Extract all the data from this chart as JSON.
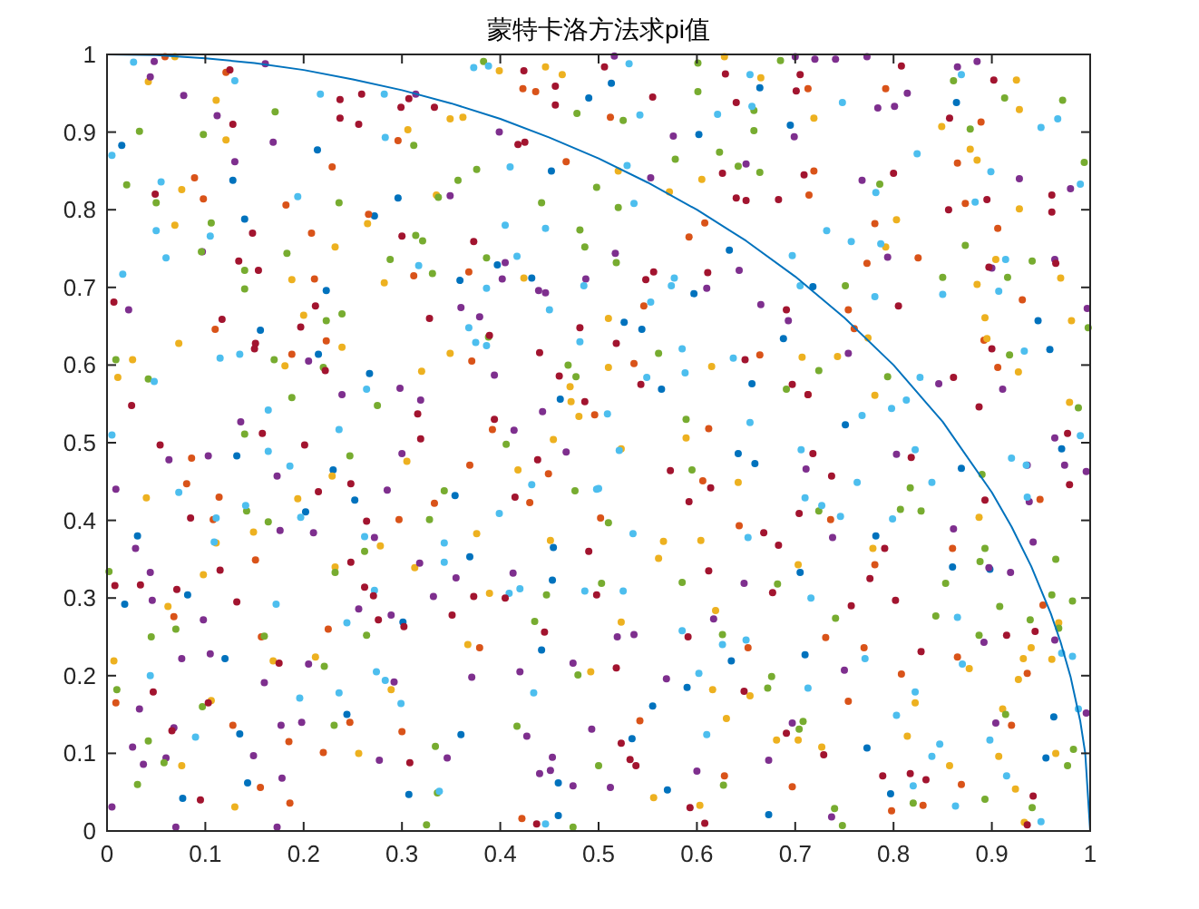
{
  "chart_data": {
    "type": "scatter",
    "title": "蒙特卡洛方法求pi值",
    "xlim": [
      0,
      1
    ],
    "ylim": [
      0,
      1
    ],
    "xticks": [
      0,
      0.1,
      0.2,
      0.3,
      0.4,
      0.5,
      0.6,
      0.7,
      0.8,
      0.9,
      1
    ],
    "yticks": [
      0,
      0.1,
      0.2,
      0.3,
      0.4,
      0.5,
      0.6,
      0.7,
      0.8,
      0.9,
      1
    ],
    "grid": false,
    "marker": "circle",
    "series": [
      {
        "color": "#0072bd",
        "x": [
          0.015,
          0.128,
          0.214,
          0.14,
          0.272,
          0.296,
          0.359,
          0.397,
          0.432,
          0.452,
          0.49,
          0.223,
          0.156,
          0.215,
          0.267,
          0.461,
          0.513,
          0.664,
          0.602,
          0.695,
          0.864,
          0.633,
          0.597,
          0.718,
          0.526,
          0.544,
          0.688,
          0.947,
          0.959,
          0.656,
          0.564,
          0.751,
          0.132,
          0.23,
          0.252,
          0.031,
          0.202,
          0.018,
          0.082,
          0.12,
          0.354,
          0.369,
          0.454,
          0.453,
          0.442,
          0.301,
          0.244,
          0.135,
          0.077,
          0.143,
          0.307,
          0.36,
          0.459,
          0.459,
          0.642,
          0.659,
          0.869,
          0.971,
          0.782,
          0.705,
          0.71,
          0.635,
          0.59,
          0.555,
          0.534,
          0.773,
          0.797,
          0.57,
          0.673,
          0.955,
          0.963,
          0.898,
          0.86
        ],
        "values": [
          0.883,
          0.838,
          0.877,
          0.788,
          0.792,
          0.815,
          0.709,
          0.729,
          0.712,
          0.85,
          0.944,
          0.696,
          0.645,
          0.614,
          0.589,
          0.556,
          0.963,
          0.957,
          0.897,
          0.909,
          0.938,
          0.748,
          0.692,
          0.701,
          0.655,
          0.646,
          0.634,
          0.657,
          0.62,
          0.576,
          0.569,
          0.523,
          0.483,
          0.465,
          0.426,
          0.38,
          0.411,
          0.292,
          0.304,
          0.222,
          0.432,
          0.353,
          0.365,
          0.323,
          0.233,
          0.269,
          0.15,
          0.125,
          0.042,
          0.062,
          0.047,
          0.124,
          0.062,
          0.02,
          0.486,
          0.473,
          0.467,
          0.492,
          0.38,
          0.333,
          0.227,
          0.219,
          0.185,
          0.161,
          0.119,
          0.107,
          0.048,
          0.053,
          0.021,
          0.094,
          0.147,
          0.337,
          0.34
        ]
      },
      {
        "color": "#d95319",
        "x": [
          0.059,
          0.121,
          0.229,
          0.089,
          0.098,
          0.182,
          0.208,
          0.266,
          0.211,
          0.296,
          0.368,
          0.312,
          0.423,
          0.436,
          0.467,
          0.11,
          0.223,
          0.188,
          0.371,
          0.392,
          0.496,
          0.512,
          0.713,
          0.792,
          0.865,
          0.889,
          0.873,
          0.719,
          0.714,
          0.592,
          0.608,
          0.781,
          0.773,
          0.825,
          0.931,
          0.906,
          0.546,
          0.664,
          0.754,
          0.76,
          0.892,
          0.906,
          0.713,
          0.536,
          0.612,
          0.086,
          0.081,
          0.114,
          0.108,
          0.151,
          0.068,
          0.157,
          0.225,
          0.009,
          0.128,
          0.185,
          0.22,
          0.247,
          0.156,
          0.186,
          0.297,
          0.3,
          0.333,
          0.369,
          0.379,
          0.43,
          0.449,
          0.422,
          0.502,
          0.542,
          0.606,
          0.643,
          0.652,
          0.731,
          0.736,
          0.754,
          0.781,
          0.77,
          0.808,
          0.86,
          0.865,
          0.949,
          0.952,
          0.936,
          0.92,
          0.869,
          0.83,
          0.798,
          0.697,
          0.628
        ],
        "values": [
          0.997,
          0.977,
          0.855,
          0.841,
          0.814,
          0.806,
          0.77,
          0.794,
          0.711,
          0.889,
          0.72,
          0.715,
          0.956,
          0.952,
          0.862,
          0.646,
          0.631,
          0.614,
          0.605,
          0.517,
          0.536,
          0.919,
          0.956,
          0.956,
          0.86,
          0.913,
          0.808,
          0.85,
          0.819,
          0.765,
          0.783,
          0.782,
          0.731,
          0.738,
          0.684,
          0.776,
          0.676,
          0.613,
          0.671,
          0.647,
          0.632,
          0.597,
          0.562,
          0.602,
          0.518,
          0.48,
          0.447,
          0.43,
          0.401,
          0.349,
          0.276,
          0.25,
          0.26,
          0.165,
          0.136,
          0.115,
          0.101,
          0.14,
          0.056,
          0.036,
          0.401,
          0.128,
          0.422,
          0.471,
          0.236,
          0.423,
          0.46,
          0.016,
          0.403,
          0.142,
          0.451,
          0.393,
          0.236,
          0.249,
          0.401,
          0.167,
          0.343,
          0.236,
          0.202,
          0.364,
          0.224,
          0.427,
          0.291,
          0.203,
          0.136,
          0.06,
          0.033,
          0.026,
          0.057,
          0.071
        ]
      },
      {
        "color": "#edb120",
        "x": [
          0.069,
          0.042,
          0.111,
          0.121,
          0.076,
          0.069,
          0.232,
          0.265,
          0.306,
          0.349,
          0.362,
          0.335,
          0.399,
          0.446,
          0.463,
          0.282,
          0.424,
          0.188,
          0.073,
          0.026,
          0.011,
          0.2,
          0.239,
          0.181,
          0.32,
          0.349,
          0.471,
          0.472,
          0.48,
          0.454,
          0.628,
          0.665,
          0.719,
          0.605,
          0.572,
          0.52,
          0.51,
          0.51,
          0.615,
          0.707,
          0.743,
          0.774,
          0.781,
          0.803,
          0.792,
          0.849,
          0.878,
          0.885,
          0.928,
          0.925,
          0.928,
          0.904,
          0.885,
          0.893,
          0.895,
          0.927,
          0.981,
          0.97,
          0.979,
          0.589,
          0.04,
          0.098,
          0.062,
          0.111,
          0.149,
          0.194,
          0.229,
          0.232,
          0.169,
          0.212,
          0.106,
          0.076,
          0.13,
          0.256,
          0.278,
          0.289,
          0.305,
          0.313,
          0.367,
          0.389,
          0.376,
          0.418,
          0.451,
          0.492,
          0.007,
          0.523,
          0.523,
          0.642,
          0.604,
          0.566,
          0.561,
          0.619,
          0.616,
          0.63,
          0.654,
          0.681,
          0.703,
          0.703,
          0.779,
          0.822,
          0.814,
          0.857,
          0.877,
          0.887,
          0.94,
          0.932,
          0.927,
          0.911,
          0.907,
          0.924,
          0.933,
          0.965,
          0.968,
          0.961,
          0.556,
          0.603,
          0.727
        ],
        "values": [
          0.997,
          0.965,
          0.941,
          0.89,
          0.826,
          0.78,
          0.752,
          0.782,
          0.903,
          0.917,
          0.919,
          0.819,
          0.979,
          0.984,
          0.974,
          0.706,
          0.712,
          0.71,
          0.628,
          0.607,
          0.584,
          0.664,
          0.623,
          0.599,
          0.592,
          0.615,
          0.572,
          0.553,
          0.534,
          0.504,
          0.997,
          0.97,
          0.918,
          0.839,
          0.823,
          0.85,
          0.66,
          0.597,
          0.598,
          0.61,
          0.611,
          0.635,
          0.561,
          0.787,
          0.752,
          0.907,
          0.878,
          0.864,
          0.929,
          0.967,
          0.801,
          0.736,
          0.704,
          0.661,
          0.634,
          0.591,
          0.657,
          0.712,
          0.552,
          0.506,
          0.429,
          0.33,
          0.289,
          0.371,
          0.385,
          0.428,
          0.457,
          0.34,
          0.219,
          0.224,
          0.168,
          0.084,
          0.031,
          0.1,
          0.367,
          0.182,
          0.476,
          0.339,
          0.24,
          0.306,
          0.383,
          0.465,
          0.374,
          0.205,
          0.219,
          0.492,
          0.269,
          0.449,
          0.374,
          0.373,
          0.351,
          0.284,
          0.182,
          0.145,
          0.174,
          0.117,
          0.117,
          0.343,
          0.364,
          0.165,
          0.122,
          0.084,
          0.209,
          0.404,
          0.236,
          0.222,
          0.195,
          0.157,
          0.096,
          0.054,
          0.011,
          0.1,
          0.268,
          0.221,
          0.043,
          0.033,
          0.108
        ]
      },
      {
        "color": "#7e2f8e",
        "x": [
          0.048,
          0.044,
          0.078,
          0.112,
          0.13,
          0.169,
          0.161,
          0.097,
          0.349,
          0.399,
          0.314,
          0.405,
          0.402,
          0.439,
          0.446,
          0.487,
          0.022,
          0.205,
          0.239,
          0.298,
          0.319,
          0.36,
          0.379,
          0.394,
          0.443,
          0.414,
          0.136,
          0.516,
          0.7,
          0.72,
          0.741,
          0.773,
          0.865,
          0.885,
          0.814,
          0.801,
          0.784,
          0.576,
          0.553,
          0.65,
          0.699,
          0.768,
          0.794,
          0.517,
          0.61,
          0.643,
          0.665,
          0.693,
          0.754,
          0.846,
          0.911,
          0.928,
          0.98,
          0.964,
          0.9,
          0.964,
          0.997,
          0.009,
          0.063,
          0.103,
          0.029,
          0.044,
          0.046,
          0.098,
          0.076,
          0.105,
          0.176,
          0.21,
          0.173,
          0.256,
          0.272,
          0.285,
          0.3,
          0.289,
          0.318,
          0.205,
          0.16,
          0.177,
          0.198,
          0.149,
          0.033,
          0.026,
          0.037,
          0.06,
          0.068,
          0.178,
          0.277,
          0.292,
          0.346,
          0.355,
          0.332,
          0.371,
          0.413,
          0.42,
          0.427,
          0.44,
          0.451,
          0.453,
          0.474,
          0.474,
          0.467,
          0.493,
          0.005,
          0.07,
          0.173,
          0.803,
          0.936,
          0.938,
          0.974,
          0.996,
          0.861,
          0.942,
          0.919,
          0.897,
          0.892,
          0.711,
          0.738,
          0.648,
          0.617,
          0.536,
          0.519,
          0.569,
          0.75,
          0.697,
          0.904,
          0.673,
          0.6,
          0.512,
          0.737,
          0.964,
          0.996
        ],
        "values": [
          0.991,
          0.971,
          0.947,
          0.921,
          0.862,
          0.887,
          0.988,
          0.746,
          0.818,
          0.9,
          0.949,
          0.732,
          0.711,
          0.696,
          0.693,
          0.711,
          0.671,
          0.605,
          0.562,
          0.57,
          0.555,
          0.674,
          0.662,
          0.587,
          0.54,
          0.516,
          0.527,
          0.998,
          0.997,
          0.994,
          0.994,
          0.997,
          0.984,
          0.991,
          0.95,
          0.933,
          0.931,
          0.895,
          0.841,
          0.859,
          0.894,
          0.838,
          0.739,
          0.744,
          0.699,
          0.722,
          0.678,
          0.657,
          0.615,
          0.576,
          0.569,
          0.84,
          0.827,
          0.736,
          0.725,
          0.506,
          0.673,
          0.44,
          0.478,
          0.483,
          0.364,
          0.333,
          0.297,
          0.272,
          0.222,
          0.228,
          0.387,
          0.384,
          0.457,
          0.286,
          0.378,
          0.439,
          0.486,
          0.278,
          0.345,
          0.215,
          0.191,
          0.136,
          0.14,
          0.097,
          0.157,
          0.108,
          0.086,
          0.094,
          0.133,
          0.068,
          0.091,
          0.192,
          0.094,
          0.326,
          0.302,
          0.198,
          0.332,
          0.205,
          0.122,
          0.074,
          0.078,
          0.095,
          0.058,
          0.216,
          0.488,
          0.131,
          0.031,
          0.005,
          0.005,
          0.485,
          0.471,
          0.424,
          0.471,
          0.463,
          0.389,
          0.372,
          0.333,
          0.339,
          0.243,
          0.466,
          0.378,
          0.319,
          0.273,
          0.253,
          0.25,
          0.196,
          0.207,
          0.139,
          0.139,
          0.091,
          0.077,
          0.056,
          0.018,
          0.246,
          0.152
        ]
      },
      {
        "color": "#77ac30",
        "x": [
          0.033,
          0.098,
          0.171,
          0.02,
          0.05,
          0.106,
          0.096,
          0.183,
          0.14,
          0.14,
          0.236,
          0.312,
          0.314,
          0.321,
          0.288,
          0.331,
          0.337,
          0.357,
          0.376,
          0.386,
          0.383,
          0.442,
          0.478,
          0.481,
          0.486,
          0.498,
          0.009,
          0.042,
          0.223,
          0.239,
          0.17,
          0.22,
          0.188,
          0.275,
          0.388,
          0.469,
          0.477,
          0.14,
          0.601,
          0.685,
          0.601,
          0.658,
          0.658,
          0.525,
          0.623,
          0.578,
          0.642,
          0.664,
          0.786,
          0.861,
          0.878,
          0.913,
          0.972,
          0.994,
          0.52,
          0.518,
          0.561,
          0.751,
          0.724,
          0.794,
          0.85,
          0.873,
          0.941,
          0.916,
          0.918,
          0.998,
          0.589,
          0.691,
          0.988,
          0.142,
          0.164,
          0.247,
          0.232,
          0.262,
          0.264,
          0.221,
          0.231,
          0.16,
          0.07,
          0.045,
          0.01,
          0.002,
          0.097,
          0.042,
          0.058,
          0.031,
          0.328,
          0.343,
          0.334,
          0.336,
          0.325,
          0.406,
          0.417,
          0.435,
          0.447,
          0.476,
          0.479,
          0.474,
          0.51,
          0.503,
          0.595,
          0.585,
          0.682,
          0.724,
          0.741,
          0.676,
          0.672,
          0.627,
          0.708,
          0.704,
          0.807,
          0.828,
          0.817,
          0.853,
          0.843,
          0.887,
          0.89,
          0.888,
          0.893,
          0.908,
          0.939,
          0.961,
          0.965,
          0.982,
          0.968,
          0.914,
          0.983,
          0.977,
          0.941,
          0.893,
          0.82,
          0.74,
          0.748,
          0.626,
          0.5
        ],
        "values": [
          0.901,
          0.897,
          0.926,
          0.832,
          0.809,
          0.783,
          0.746,
          0.744,
          0.722,
          0.698,
          0.809,
          0.883,
          0.767,
          0.76,
          0.736,
          0.718,
          0.816,
          0.838,
          0.852,
          0.738,
          0.991,
          0.809,
          0.924,
          0.774,
          0.752,
          0.829,
          0.607,
          0.582,
          0.657,
          0.666,
          0.607,
          0.597,
          0.558,
          0.548,
          0.636,
          0.6,
          0.585,
          0.511,
          0.989,
          0.992,
          0.952,
          0.928,
          0.902,
          0.915,
          0.874,
          0.865,
          0.856,
          0.848,
          0.833,
          0.966,
          0.904,
          0.944,
          0.941,
          0.861,
          0.803,
          0.732,
          0.615,
          0.702,
          0.593,
          0.585,
          0.713,
          0.754,
          0.734,
          0.713,
          0.613,
          0.648,
          0.53,
          0.569,
          0.545,
          0.412,
          0.398,
          0.483,
          0.333,
          0.36,
          0.252,
          0.212,
          0.136,
          0.251,
          0.26,
          0.25,
          0.182,
          0.334,
          0.16,
          0.116,
          0.088,
          0.06,
          0.401,
          0.438,
          0.109,
          0.049,
          0.008,
          0.498,
          0.135,
          0.27,
          0.304,
          0.438,
          0.201,
          0.005,
          0.397,
          0.319,
          0.465,
          0.32,
          0.318,
          0.412,
          0.274,
          0.199,
          0.184,
          0.059,
          0.141,
          0.131,
          0.414,
          0.412,
          0.442,
          0.319,
          0.277,
          0.252,
          0.459,
          0.347,
          0.364,
          0.289,
          0.272,
          0.304,
          0.35,
          0.296,
          0.261,
          0.15,
          0.105,
          0.084,
          0.03,
          0.041,
          0.036,
          0.029,
          0.007,
          0.253,
          0.084
        ]
      },
      {
        "color": "#4dbeee",
        "x": [
          0.027,
          0.13,
          0.005,
          0.055,
          0.05,
          0.06,
          0.016,
          0.105,
          0.194,
          0.217,
          0.282,
          0.283,
          0.373,
          0.388,
          0.405,
          0.41,
          0.417,
          0.317,
          0.386,
          0.446,
          0.45,
          0.485,
          0.481,
          0.115,
          0.135,
          0.264,
          0.164,
          0.236,
          0.368,
          0.375,
          0.386,
          0.048,
          0.005,
          0.531,
          0.654,
          0.656,
          0.621,
          0.542,
          0.529,
          0.536,
          0.748,
          0.824,
          0.869,
          0.899,
          0.883,
          0.95,
          0.967,
          0.99,
          0.782,
          0.732,
          0.787,
          0.757,
          0.697,
          0.705,
          0.781,
          0.85,
          0.914,
          0.907,
          0.933,
          0.574,
          0.577,
          0.553,
          0.585,
          0.588,
          0.637,
          0.549,
          0.509,
          0.654,
          0.768,
          0.798,
          0.813,
          0.827,
          0.99,
          0.164,
          0.186,
          0.073,
          0.141,
          0.111,
          0.197,
          0.109,
          0.262,
          0.272,
          0.343,
          0.343,
          0.172,
          0.244,
          0.274,
          0.283,
          0.299,
          0.236,
          0.196,
          0.044,
          0.09,
          0.399,
          0.432,
          0.42,
          0.409,
          0.486,
          0.498,
          0.434,
          0.338,
          0.446,
          0.521,
          0.706,
          0.822,
          0.92,
          0.935,
          0.763,
          0.839,
          0.71,
          0.727,
          0.746,
          0.799,
          0.535,
          0.652,
          0.525,
          0.716,
          0.585,
          0.626,
          0.65,
          0.771,
          0.822,
          0.713,
          0.602,
          0.61,
          0.803,
          0.847,
          0.839,
          0.865,
          0.87,
          0.936,
          0.971,
          0.982,
          0.988,
          0.898,
          0.915,
          0.863,
          0.95,
          0.82,
          0.5
        ],
        "values": [
          0.99,
          0.966,
          0.87,
          0.836,
          0.773,
          0.738,
          0.717,
          0.766,
          0.817,
          0.949,
          0.949,
          0.893,
          0.983,
          0.985,
          0.78,
          0.855,
          0.74,
          0.728,
          0.699,
          0.776,
          0.671,
          0.702,
          0.63,
          0.609,
          0.614,
          0.569,
          0.542,
          0.517,
          0.648,
          0.629,
          0.625,
          0.579,
          0.51,
          0.988,
          0.974,
          0.933,
          0.923,
          0.922,
          0.857,
          0.808,
          0.938,
          0.872,
          0.974,
          0.849,
          0.81,
          0.906,
          0.917,
          0.833,
          0.822,
          0.773,
          0.756,
          0.759,
          0.741,
          0.702,
          0.688,
          0.691,
          0.736,
          0.695,
          0.618,
          0.702,
          0.712,
          0.681,
          0.621,
          0.59,
          0.609,
          0.584,
          0.537,
          0.526,
          0.535,
          0.544,
          0.555,
          0.584,
          0.509,
          0.489,
          0.47,
          0.436,
          0.419,
          0.403,
          0.404,
          0.372,
          0.379,
          0.31,
          0.371,
          0.346,
          0.292,
          0.268,
          0.205,
          0.194,
          0.164,
          0.178,
          0.171,
          0.2,
          0.121,
          0.409,
          0.446,
          0.312,
          0.306,
          0.309,
          0.44,
          0.178,
          0.051,
          0.009,
          0.49,
          0.491,
          0.491,
          0.48,
          0.471,
          0.449,
          0.449,
          0.429,
          0.419,
          0.405,
          0.402,
          0.383,
          0.378,
          0.309,
          0.3,
          0.258,
          0.24,
          0.246,
          0.222,
          0.179,
          0.184,
          0.203,
          0.124,
          0.149,
          0.112,
          0.096,
          0.275,
          0.215,
          0.43,
          0.229,
          0.225,
          0.157,
          0.117,
          0.071,
          0.032,
          0.012,
          0.058,
          0.441
        ]
      },
      {
        "color": "#a2142f",
        "x": [
          0.125,
          0.424,
          0.456,
          0.456,
          0.237,
          0.237,
          0.259,
          0.256,
          0.299,
          0.307,
          0.333,
          0.418,
          0.425,
          0.128,
          0.049,
          0.148,
          0.134,
          0.154,
          0.3,
          0.373,
          0.007,
          0.117,
          0.151,
          0.15,
          0.197,
          0.212,
          0.328,
          0.389,
          0.44,
          0.46,
          0.481,
          0.486,
          0.025,
          0.158,
          0.222,
          0.316,
          0.394,
          0.319,
          0.506,
          0.629,
          0.705,
          0.808,
          0.555,
          0.64,
          0.701,
          0.857,
          0.902,
          0.626,
          0.709,
          0.8,
          0.64,
          0.65,
          0.683,
          0.895,
          0.856,
          0.961,
          0.961,
          0.965,
          0.556,
          0.548,
          0.611,
          0.691,
          0.805,
          0.518,
          0.649,
          0.543,
          0.697,
          0.713,
          0.861,
          0.897,
          0.9,
          0.887,
          0.977,
          0.054,
          0.201,
          0.215,
          0.248,
          0.085,
          0.264,
          0.248,
          0.115,
          0.034,
          0.008,
          0.071,
          0.132,
          0.262,
          0.271,
          0.276,
          0.302,
          0.351,
          0.373,
          0.405,
          0.438,
          0.415,
          0.445,
          0.49,
          0.498,
          0.175,
          0.103,
          0.047,
          0.066,
          0.095,
          0.308,
          0.437,
          0.573,
          0.614,
          0.592,
          0.612,
          0.677,
          0.683,
          0.668,
          0.718,
          0.737,
          0.704,
          0.818,
          0.791,
          0.802,
          0.757,
          0.776,
          0.828,
          0.893,
          0.915,
          0.944,
          0.979,
          0.518,
          0.523,
          0.532,
          0.538,
          0.591,
          0.648,
          0.729,
          0.691,
          0.789,
          0.817,
          0.833,
          0.593,
          0.608,
          0.942,
          0.936
        ],
        "values": [
          0.98,
          0.979,
          0.959,
          0.935,
          0.942,
          0.918,
          0.949,
          0.91,
          0.932,
          0.943,
          0.932,
          0.884,
          0.887,
          0.91,
          0.82,
          0.77,
          0.734,
          0.722,
          0.766,
          0.759,
          0.681,
          0.659,
          0.628,
          0.621,
          0.649,
          0.676,
          0.66,
          0.638,
          0.616,
          0.586,
          0.648,
          0.553,
          0.548,
          0.512,
          0.593,
          0.537,
          0.53,
          0.505,
          0.984,
          0.975,
          0.974,
          0.985,
          0.945,
          0.938,
          0.953,
          0.918,
          0.967,
          0.847,
          0.845,
          0.847,
          0.815,
          0.812,
          0.813,
          0.813,
          0.8,
          0.819,
          0.797,
          0.731,
          0.72,
          0.71,
          0.719,
          0.671,
          0.676,
          0.628,
          0.607,
          0.575,
          0.575,
          0.562,
          0.584,
          0.726,
          0.621,
          0.546,
          0.512,
          0.497,
          0.497,
          0.437,
          0.447,
          0.403,
          0.399,
          0.346,
          0.336,
          0.317,
          0.316,
          0.311,
          0.295,
          0.314,
          0.303,
          0.272,
          0.263,
          0.278,
          0.302,
          0.3,
          0.478,
          0.43,
          0.256,
          0.36,
          0.304,
          0.216,
          0.165,
          0.179,
          0.129,
          0.04,
          0.088,
          0.009,
          0.464,
          0.442,
          0.424,
          0.335,
          0.307,
          0.368,
          0.384,
          0.486,
          0.457,
          0.409,
          0.481,
          0.364,
          0.297,
          0.29,
          0.325,
          0.231,
          0.426,
          0.252,
          0.257,
          0.446,
          0.21,
          0.113,
          0.092,
          0.084,
          0.25,
          0.18,
          0.098,
          0.126,
          0.071,
          0.074,
          0.066,
          0.03,
          0.01,
          0.045,
          0.008
        ]
      },
      {
        "type": "line",
        "marker": "none",
        "color": "#0072bd",
        "x": [
          0,
          0.05,
          0.1,
          0.15,
          0.2,
          0.25,
          0.3,
          0.35,
          0.4,
          0.45,
          0.5,
          0.55,
          0.6,
          0.65,
          0.7,
          0.75,
          0.8,
          0.85,
          0.9,
          0.92,
          0.94,
          0.96,
          0.97,
          0.98,
          0.99,
          0.995,
          1
        ],
        "values": [
          1,
          0.999,
          0.995,
          0.989,
          0.98,
          0.968,
          0.954,
          0.937,
          0.917,
          0.893,
          0.866,
          0.835,
          0.8,
          0.76,
          0.714,
          0.661,
          0.6,
          0.527,
          0.436,
          0.392,
          0.341,
          0.28,
          0.243,
          0.199,
          0.141,
          0.1,
          0
        ]
      }
    ]
  }
}
